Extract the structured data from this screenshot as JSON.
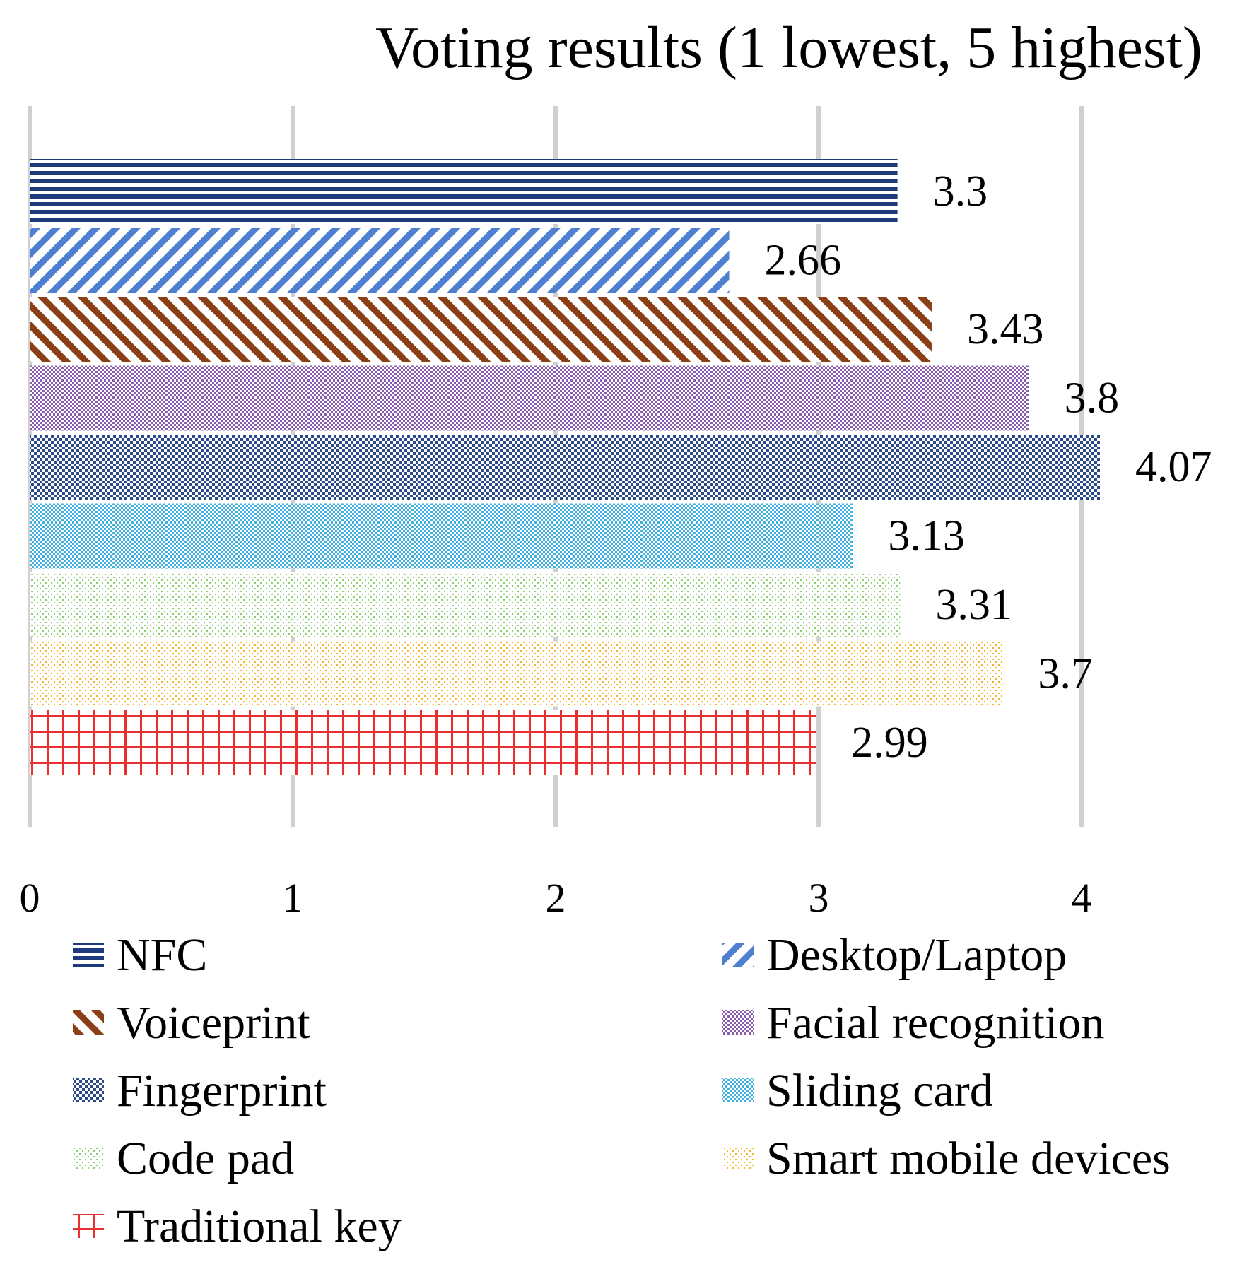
{
  "chart_data": {
    "type": "bar",
    "orientation": "horizontal",
    "title": "Voting results (1 lowest, 5 highest)",
    "xlabel": "",
    "ylabel": "",
    "xlim": [
      0,
      4.3
    ],
    "x_ticks": [
      "0",
      "1",
      "2",
      "3",
      "4"
    ],
    "grid": "vertical",
    "legend_placement": "bottom",
    "series": [
      {
        "name": "NFC",
        "value": 3.3,
        "label": "3.3",
        "color": "#1f3a7a",
        "pattern": "horizontal-lines"
      },
      {
        "name": "Desktop/Laptop",
        "value": 2.66,
        "label": "2.66",
        "color": "#4f7fd0",
        "pattern": "diagonal-up"
      },
      {
        "name": "Voiceprint",
        "value": 3.43,
        "label": "3.43",
        "color": "#8b3f17",
        "pattern": "diagonal-down"
      },
      {
        "name": "Facial recognition",
        "value": 3.8,
        "label": "3.8",
        "color": "#8a5cb0",
        "pattern": "dense-dots"
      },
      {
        "name": "Fingerprint",
        "value": 4.07,
        "label": "4.07",
        "color": "#2a4a8a",
        "pattern": "checker"
      },
      {
        "name": "Sliding card",
        "value": 3.13,
        "label": "3.13",
        "color": "#3fb0e0",
        "pattern": "dense-dots"
      },
      {
        "name": "Code pad",
        "value": 3.31,
        "label": "3.31",
        "color": "#8ccf6e",
        "pattern": "light-dots"
      },
      {
        "name": "Smart mobile devices",
        "value": 3.7,
        "label": "3.7",
        "color": "#f5b52a",
        "pattern": "light-dots"
      },
      {
        "name": "Traditional key",
        "value": 2.99,
        "label": "2.99",
        "color": "#e83030",
        "pattern": "grid"
      }
    ]
  }
}
